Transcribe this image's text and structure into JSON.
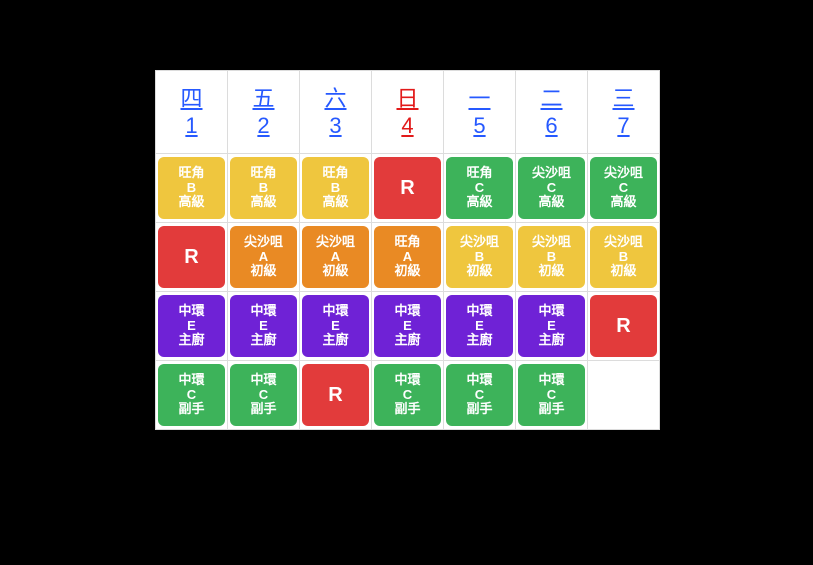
{
  "colors": {
    "yellow": "#efc63e",
    "red": "#e23b3b",
    "green": "#3db35a",
    "orange": "#e98a24",
    "purple": "#6f22d6",
    "link": "#2659ff",
    "sunday": "#e21a1a",
    "border": "#dcdcdc",
    "bg": "#ffffff"
  },
  "header": [
    {
      "weekday": "四",
      "day": "1",
      "isSunday": false,
      "striped": false
    },
    {
      "weekday": "五",
      "day": "2",
      "isSunday": false,
      "striped": false
    },
    {
      "weekday": "六",
      "day": "3",
      "isSunday": false,
      "striped": false
    },
    {
      "weekday": "日",
      "day": "4",
      "isSunday": true,
      "striped": true
    },
    {
      "weekday": "一",
      "day": "5",
      "isSunday": false,
      "striped": false
    },
    {
      "weekday": "二",
      "day": "6",
      "isSunday": false,
      "striped": false
    },
    {
      "weekday": "三",
      "day": "7",
      "isSunday": false,
      "striped": false
    }
  ],
  "rows": [
    [
      {
        "lines": [
          "旺角",
          "B",
          "高級"
        ],
        "color": "yellow"
      },
      {
        "lines": [
          "旺角",
          "B",
          "高級"
        ],
        "color": "yellow"
      },
      {
        "lines": [
          "旺角",
          "B",
          "高級"
        ],
        "color": "yellow"
      },
      {
        "lines": [
          "R"
        ],
        "color": "red",
        "rest": true
      },
      {
        "lines": [
          "旺角",
          "C",
          "高級"
        ],
        "color": "green"
      },
      {
        "lines": [
          "尖沙咀",
          "C",
          "高級"
        ],
        "color": "green"
      },
      {
        "lines": [
          "尖沙咀",
          "C",
          "高級"
        ],
        "color": "green"
      }
    ],
    [
      {
        "lines": [
          "R"
        ],
        "color": "red",
        "rest": true
      },
      {
        "lines": [
          "尖沙咀",
          "A",
          "初級"
        ],
        "color": "orange"
      },
      {
        "lines": [
          "尖沙咀",
          "A",
          "初級"
        ],
        "color": "orange"
      },
      {
        "lines": [
          "旺角",
          "A",
          "初級"
        ],
        "color": "orange"
      },
      {
        "lines": [
          "尖沙咀",
          "B",
          "初級"
        ],
        "color": "yellow"
      },
      {
        "lines": [
          "尖沙咀",
          "B",
          "初級"
        ],
        "color": "yellow"
      },
      {
        "lines": [
          "尖沙咀",
          "B",
          "初級"
        ],
        "color": "yellow"
      }
    ],
    [
      {
        "lines": [
          "中環",
          "E",
          "主廚"
        ],
        "color": "purple"
      },
      {
        "lines": [
          "中環",
          "E",
          "主廚"
        ],
        "color": "purple"
      },
      {
        "lines": [
          "中環",
          "E",
          "主廚"
        ],
        "color": "purple"
      },
      {
        "lines": [
          "中環",
          "E",
          "主廚"
        ],
        "color": "purple"
      },
      {
        "lines": [
          "中環",
          "E",
          "主廚"
        ],
        "color": "purple"
      },
      {
        "lines": [
          "中環",
          "E",
          "主廚"
        ],
        "color": "purple"
      },
      {
        "lines": [
          "R"
        ],
        "color": "red",
        "rest": true
      }
    ],
    [
      {
        "lines": [
          "中環",
          "C",
          "副手"
        ],
        "color": "green"
      },
      {
        "lines": [
          "中環",
          "C",
          "副手"
        ],
        "color": "green"
      },
      {
        "lines": [
          "R"
        ],
        "color": "red",
        "rest": true
      },
      {
        "lines": [
          "中環",
          "C",
          "副手"
        ],
        "color": "green"
      },
      {
        "lines": [
          "中環",
          "C",
          "副手"
        ],
        "color": "green"
      },
      {
        "lines": [
          "中環",
          "C",
          "副手"
        ],
        "color": "green"
      },
      null
    ]
  ]
}
